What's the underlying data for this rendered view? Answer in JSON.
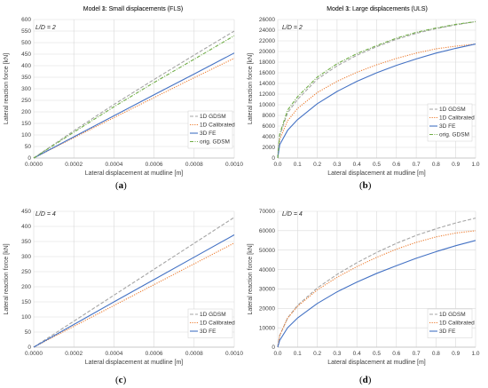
{
  "chart_data": [
    {
      "id": "a",
      "type": "line",
      "panel_label": "a",
      "title": "Model 1: Small displacements (FLS)",
      "annotation": "L/D = 2",
      "xlabel": "Lateral displacement at mudline [m]",
      "ylabel": "Lateral reaction force [kN]",
      "xlim": [
        0,
        0.001
      ],
      "ylim": [
        0,
        600
      ],
      "grid": true,
      "legend_position": "bottom-right",
      "xticks": [
        "0.0000",
        "0.0002",
        "0.0004",
        "0.0006",
        "0.0008",
        "0.0010"
      ],
      "yticks": [
        "0",
        "50",
        "100",
        "150",
        "200",
        "250",
        "300",
        "350",
        "400",
        "450",
        "500",
        "550",
        "600"
      ],
      "x": [
        0,
        0.0002,
        0.0004,
        0.0006,
        0.0008,
        0.001
      ],
      "series": [
        {
          "name": "1D GDSM",
          "color": "#a5a5a5",
          "dash": "4,2",
          "values": [
            0,
            118,
            232,
            340,
            446,
            550
          ]
        },
        {
          "name": "1D Calibrated",
          "color": "#ed7d31",
          "dash": "1.2,1.4",
          "values": [
            0,
            88,
            175,
            262,
            348,
            432
          ]
        },
        {
          "name": "3D FE",
          "color": "#4472c4",
          "dash": "",
          "values": [
            0,
            92,
            183,
            274,
            364,
            455
          ]
        },
        {
          "name": "orig. GDSM",
          "color": "#70ad47",
          "dash": "4,1.5,1,1.5",
          "values": [
            0,
            112,
            222,
            327,
            428,
            530
          ]
        }
      ]
    },
    {
      "id": "b",
      "type": "line",
      "panel_label": "b",
      "title": "Model 1: Large displacements (ULS)",
      "annotation": "L/D = 2",
      "xlabel": "Lateral displacement at mudline [m]",
      "ylabel": "Lateral reaction force [kN]",
      "xlim": [
        0,
        1
      ],
      "ylim": [
        0,
        26000
      ],
      "grid": true,
      "legend_position": "bottom-right",
      "xticks": [
        "0.0",
        "0.1",
        "0.2",
        "0.3",
        "0.4",
        "0.5",
        "0.6",
        "0.7",
        "0.8",
        "0.9",
        "1.0"
      ],
      "yticks": [
        "0",
        "2000",
        "4000",
        "6000",
        "8000",
        "10000",
        "12000",
        "14000",
        "16000",
        "18000",
        "20000",
        "22000",
        "24000",
        "26000"
      ],
      "x": [
        0,
        0.01,
        0.05,
        0.1,
        0.2,
        0.3,
        0.4,
        0.5,
        0.6,
        0.7,
        0.8,
        0.9,
        1.0
      ],
      "series": [
        {
          "name": "1D GDSM",
          "color": "#a5a5a5",
          "dash": "4,2",
          "values": [
            0,
            4200,
            8500,
            11000,
            14800,
            17300,
            19300,
            20900,
            22300,
            23400,
            24300,
            25000,
            25600
          ]
        },
        {
          "name": "1D Calibrated",
          "color": "#ed7d31",
          "dash": "1.2,1.4",
          "values": [
            0,
            3500,
            7000,
            9300,
            12300,
            14400,
            16100,
            17500,
            18700,
            19700,
            20500,
            21000,
            21400
          ]
        },
        {
          "name": "3D FE",
          "color": "#4472c4",
          "dash": "",
          "values": [
            0,
            2500,
            5200,
            7200,
            10200,
            12500,
            14400,
            16000,
            17400,
            18600,
            19700,
            20600,
            21400
          ]
        },
        {
          "name": "orig. GDSM",
          "color": "#70ad47",
          "dash": "4,1.5,1,1.5",
          "values": [
            0,
            4500,
            9000,
            11500,
            15200,
            17700,
            19600,
            21100,
            22500,
            23600,
            24400,
            25100,
            25600
          ]
        }
      ]
    },
    {
      "id": "c",
      "type": "line",
      "panel_label": "c",
      "title": "Model 3: Small displacements (FLS)",
      "annotation": "L/D = 4",
      "xlabel": "Lateral displacement at mudline [m]",
      "ylabel": "Lateral reaction force [kN]",
      "xlim": [
        0,
        0.001
      ],
      "ylim": [
        0,
        450
      ],
      "grid": true,
      "legend_position": "bottom-right",
      "xticks": [
        "0.0000",
        "0.0002",
        "0.0004",
        "0.0006",
        "0.0008",
        "0.0010"
      ],
      "yticks": [
        "0",
        "50",
        "100",
        "150",
        "200",
        "250",
        "300",
        "350",
        "400",
        "450"
      ],
      "x": [
        0,
        0.0002,
        0.0004,
        0.0006,
        0.0008,
        0.001
      ],
      "series": [
        {
          "name": "1D GDSM",
          "color": "#a5a5a5",
          "dash": "4,2",
          "values": [
            0,
            86,
            172,
            258,
            344,
            430
          ]
        },
        {
          "name": "1D Calibrated",
          "color": "#ed7d31",
          "dash": "1.2,1.4",
          "values": [
            0,
            69,
            138,
            207,
            276,
            345
          ]
        },
        {
          "name": "3D FE",
          "color": "#4472c4",
          "dash": "",
          "values": [
            0,
            75,
            150,
            224,
            298,
            372
          ]
        }
      ]
    },
    {
      "id": "d",
      "type": "line",
      "panel_label": "d",
      "title": "Model 3: Large displacements (ULS)",
      "annotation": "L/D = 4",
      "xlabel": "Lateral displacement at mudline [m]",
      "ylabel": "Lateral reaction force [kN]",
      "xlim": [
        0,
        1
      ],
      "ylim": [
        0,
        70000
      ],
      "grid": true,
      "legend_position": "bottom-right",
      "xticks": [
        "0.0",
        "0.1",
        "0.2",
        "0.3",
        "0.4",
        "0.5",
        "0.6",
        "0.7",
        "0.8",
        "0.9",
        "1.0"
      ],
      "yticks": [
        "0",
        "10000",
        "20000",
        "30000",
        "40000",
        "50000",
        "60000",
        "70000"
      ],
      "x": [
        0,
        0.01,
        0.05,
        0.1,
        0.2,
        0.3,
        0.4,
        0.5,
        0.6,
        0.7,
        0.8,
        0.9,
        1.0
      ],
      "series": [
        {
          "name": "1D GDSM",
          "color": "#a5a5a5",
          "dash": "4,2",
          "values": [
            0,
            6000,
            15000,
            21500,
            30500,
            37500,
            43500,
            48800,
            53500,
            57600,
            61000,
            64000,
            66500
          ]
        },
        {
          "name": "1D Calibrated",
          "color": "#ed7d31",
          "dash": "1.2,1.4",
          "values": [
            0,
            6000,
            15000,
            21000,
            29500,
            36000,
            41500,
            46300,
            50500,
            54000,
            56800,
            58800,
            60000
          ]
        },
        {
          "name": "3D FE",
          "color": "#4472c4",
          "dash": "",
          "values": [
            0,
            3500,
            10000,
            15000,
            22500,
            28500,
            33500,
            38000,
            42000,
            45800,
            49200,
            52300,
            55000
          ]
        }
      ]
    }
  ]
}
